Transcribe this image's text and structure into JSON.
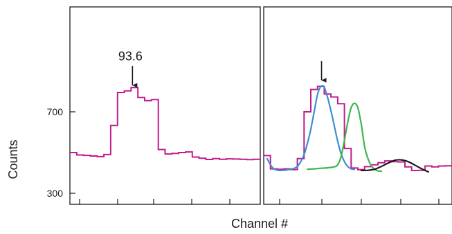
{
  "chart_data": [
    {
      "type": "line",
      "panel": "left",
      "title": "",
      "xlabel": "Channel #",
      "ylabel": "Counts",
      "ylim": [
        230,
        1000
      ],
      "y_ticks": [
        300,
        700
      ],
      "x_tick_count": 5,
      "grid": false,
      "series": [
        {
          "style": "step",
          "color": "#c21a8c",
          "x": [
            0,
            1,
            2,
            3,
            4,
            5,
            6,
            7,
            8,
            9,
            10,
            11,
            12,
            13,
            14,
            15,
            16,
            17,
            18,
            19,
            20,
            21,
            22,
            23,
            24,
            25,
            26,
            27
          ],
          "values": [
            500,
            488,
            486,
            483,
            480,
            490,
            633,
            795,
            803,
            819,
            770,
            755,
            760,
            515,
            493,
            496,
            500,
            503,
            478,
            472,
            466,
            470,
            467,
            469,
            468,
            467,
            465,
            467
          ]
        }
      ],
      "annotations": [
        {
          "text": "93.6",
          "x": 9.2,
          "y": 830,
          "marker": "down-arrow"
        }
      ]
    },
    {
      "type": "line",
      "panel": "right",
      "title": "",
      "xlabel": "Channel #",
      "ylim": [
        230,
        1000
      ],
      "x_tick_count": 5,
      "grid": false,
      "series": [
        {
          "style": "step",
          "color": "#c21a8c",
          "x": [
            0,
            1,
            2,
            3,
            4,
            5,
            6,
            7,
            8,
            9,
            10,
            11,
            12,
            13,
            14,
            15,
            16,
            17,
            18,
            19,
            20,
            21,
            22,
            23,
            24,
            25,
            26,
            27
          ],
          "values": [
            485,
            420,
            418,
            420,
            416,
            470,
            700,
            810,
            825,
            787,
            773,
            740,
            520,
            424,
            416,
            431,
            440,
            450,
            459,
            455,
            454,
            430,
            412,
            413,
            434,
            430,
            434,
            435
          ]
        },
        {
          "style": "smooth",
          "color": "#3a8fd0",
          "x": [
            0,
            0.5,
            1,
            1.5,
            2,
            2.5,
            3,
            3.5,
            4,
            4.5,
            5,
            5.5,
            6,
            6.5,
            7,
            7.5,
            8,
            8.5,
            9,
            9.5,
            10,
            10.5,
            11,
            11.5,
            12,
            12.5,
            13
          ],
          "values": [
            470,
            440,
            420,
            414,
            412,
            413,
            415,
            418,
            422,
            432,
            455,
            490,
            545,
            615,
            700,
            785,
            825,
            820,
            770,
            705,
            630,
            555,
            495,
            455,
            432,
            420,
            418
          ]
        },
        {
          "style": "smooth",
          "color": "#3cb54a",
          "x": [
            6,
            7,
            8,
            9,
            10,
            10.5,
            11,
            11.5,
            12,
            12.5,
            13,
            13.5,
            14,
            14.5,
            15,
            15.5,
            16,
            16.5,
            17
          ],
          "values": [
            418,
            420,
            423,
            425,
            430,
            440,
            480,
            560,
            650,
            720,
            742,
            720,
            640,
            530,
            470,
            435,
            418,
            410,
            408
          ]
        },
        {
          "style": "smooth",
          "color": "#1a1a1a",
          "x": [
            14,
            15,
            16,
            17,
            18,
            19,
            20,
            21,
            22,
            23,
            24
          ],
          "values": [
            412,
            413,
            418,
            432,
            448,
            462,
            464,
            455,
            438,
            420,
            405
          ]
        }
      ],
      "annotations": [
        {
          "text": "",
          "x": 8.6,
          "y": 855,
          "marker": "down-arrow"
        }
      ]
    }
  ]
}
